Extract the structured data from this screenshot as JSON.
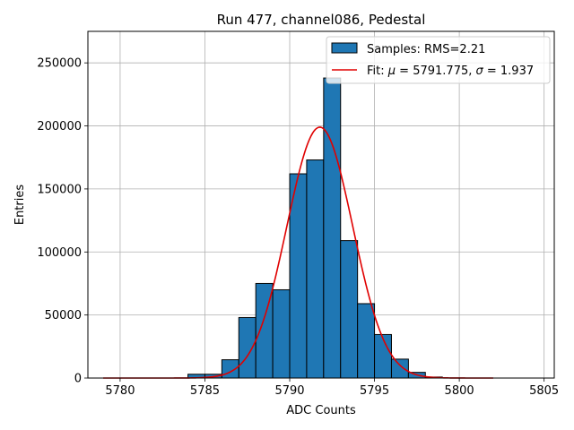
{
  "chart_data": {
    "type": "bar",
    "title": "Run 477, channel086, Pedestal",
    "xlabel": "ADC Counts",
    "ylabel": "Entries",
    "xlim": [
      5778.1,
      5805.6
    ],
    "ylim": [
      0,
      275000
    ],
    "x_ticks": [
      5780,
      5785,
      5790,
      5795,
      5800,
      5805
    ],
    "y_ticks": [
      0,
      50000,
      100000,
      150000,
      200000,
      250000
    ],
    "grid": true,
    "legend_position": "top-right",
    "bar_color": "#1f77b4",
    "fit_color": "#e00000",
    "bins": [
      {
        "x0": 5784,
        "x1": 5785,
        "value": 3000
      },
      {
        "x0": 5785,
        "x1": 5786,
        "value": 3000
      },
      {
        "x0": 5786,
        "x1": 5787,
        "value": 14500
      },
      {
        "x0": 5787,
        "x1": 5788,
        "value": 48000
      },
      {
        "x0": 5788,
        "x1": 5789,
        "value": 75000
      },
      {
        "x0": 5789,
        "x1": 5790,
        "value": 70000
      },
      {
        "x0": 5790,
        "x1": 5791,
        "value": 162000
      },
      {
        "x0": 5791,
        "x1": 5792,
        "value": 173000
      },
      {
        "x0": 5792,
        "x1": 5793,
        "value": 238000
      },
      {
        "x0": 5793,
        "x1": 5794,
        "value": 109000
      },
      {
        "x0": 5794,
        "x1": 5795,
        "value": 59000
      },
      {
        "x0": 5795,
        "x1": 5796,
        "value": 34500
      },
      {
        "x0": 5796,
        "x1": 5797,
        "value": 15000
      },
      {
        "x0": 5797,
        "x1": 5798,
        "value": 4500
      },
      {
        "x0": 5798,
        "x1": 5799,
        "value": 800
      }
    ],
    "fit": {
      "mu": 5791.775,
      "sigma": 1.937,
      "amplitude": 199000,
      "x_range": [
        5779,
        5802
      ]
    },
    "legend": {
      "samples_label": "Samples: RMS=2.21",
      "fit_prefix": "Fit: ",
      "mu_symbol": "μ",
      "fit_mid": " = 5791.775, ",
      "sigma_symbol": "σ",
      "fit_suffix": " = 1.937"
    }
  }
}
